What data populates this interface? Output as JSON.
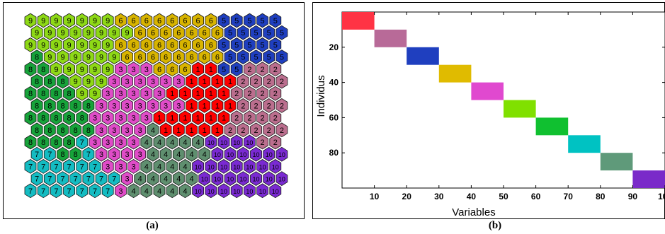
{
  "panels": {
    "a": {
      "caption": "(a)",
      "grid_rows": [
        [
          9,
          9,
          9,
          9,
          9,
          9,
          9,
          6,
          6,
          6,
          6,
          6,
          6,
          6,
          6,
          5,
          5,
          5,
          5,
          5
        ],
        [
          9,
          9,
          9,
          9,
          9,
          9,
          9,
          9,
          6,
          6,
          6,
          6,
          6,
          6,
          6,
          5,
          5,
          5,
          5,
          5
        ],
        [
          9,
          9,
          9,
          9,
          9,
          9,
          9,
          6,
          6,
          6,
          6,
          6,
          6,
          6,
          6,
          5,
          5,
          5,
          5,
          5
        ],
        [
          8,
          9,
          9,
          9,
          9,
          9,
          9,
          6,
          6,
          6,
          6,
          6,
          6,
          6,
          6,
          5,
          5,
          5,
          5,
          5
        ],
        [
          8,
          8,
          9,
          9,
          9,
          9,
          9,
          3,
          3,
          3,
          6,
          6,
          6,
          1,
          1,
          5,
          5,
          2,
          2,
          2
        ],
        [
          8,
          8,
          8,
          9,
          9,
          9,
          3,
          3,
          3,
          3,
          3,
          3,
          1,
          1,
          1,
          1,
          2,
          2,
          2,
          2
        ],
        [
          8,
          8,
          8,
          8,
          9,
          9,
          3,
          3,
          3,
          3,
          3,
          1,
          1,
          1,
          1,
          1,
          2,
          2,
          2,
          2
        ],
        [
          8,
          8,
          8,
          8,
          8,
          3,
          3,
          3,
          3,
          3,
          3,
          3,
          1,
          1,
          1,
          1,
          2,
          2,
          2,
          2
        ],
        [
          8,
          8,
          8,
          8,
          8,
          3,
          3,
          3,
          3,
          3,
          1,
          1,
          1,
          1,
          1,
          1,
          2,
          2,
          2,
          2
        ],
        [
          8,
          8,
          8,
          8,
          8,
          3,
          3,
          3,
          3,
          4,
          1,
          1,
          1,
          1,
          1,
          2,
          2,
          2,
          2,
          2
        ],
        [
          8,
          8,
          8,
          8,
          7,
          3,
          3,
          3,
          3,
          4,
          4,
          4,
          4,
          4,
          10,
          10,
          10,
          10,
          2,
          2
        ],
        [
          7,
          7,
          8,
          8,
          7,
          3,
          3,
          3,
          3,
          4,
          4,
          4,
          4,
          4,
          10,
          10,
          10,
          10,
          10,
          10
        ],
        [
          7,
          7,
          7,
          7,
          7,
          7,
          3,
          3,
          3,
          4,
          4,
          4,
          4,
          10,
          10,
          10,
          10,
          10,
          10,
          10
        ],
        [
          7,
          7,
          7,
          7,
          7,
          7,
          7,
          3,
          4,
          4,
          4,
          4,
          4,
          10,
          10,
          10,
          10,
          10,
          10,
          10
        ],
        [
          7,
          7,
          7,
          7,
          7,
          7,
          7,
          3,
          4,
          4,
          4,
          4,
          4,
          10,
          10,
          10,
          10,
          10,
          10,
          10
        ]
      ]
    },
    "b": {
      "caption": "(b)"
    }
  },
  "colors": {
    "cluster_1": "#ff0000",
    "cluster_2": "#bb6e8e",
    "cluster_3": "#e04cc8",
    "cluster_4": "#5f8f6f",
    "cluster_5": "#1f3fbf",
    "cluster_6": "#d8b400",
    "cluster_7": "#14bcc2",
    "cluster_8": "#17a33a",
    "cluster_9": "#8ed916",
    "cluster_10": "#7a2ad2",
    "matrix_blocks": [
      "#ff3344",
      "#b86a98",
      "#1f3fbf",
      "#e0bb00",
      "#e049cf",
      "#80e000",
      "#10c030",
      "#00c2c2",
      "#5f9a7a",
      "#7a2ac9"
    ]
  },
  "chart_data": [
    {
      "type": "heatmap",
      "description_units": "self-organizing map cluster labels, 20 columns x 15 rows",
      "values_ref": "panels.a.grid_rows"
    },
    {
      "type": "heatmap",
      "xlabel": "Variables",
      "ylabel": "Individus",
      "xlim": [
        0,
        100
      ],
      "ylim": [
        100,
        0
      ],
      "xticks": [
        10,
        20,
        30,
        40,
        50,
        60,
        70,
        80,
        90,
        100
      ],
      "yticks": [
        20,
        40,
        60,
        80
      ],
      "blocks": [
        {
          "x": [
            0,
            10
          ],
          "y": [
            0,
            10
          ]
        },
        {
          "x": [
            10,
            20
          ],
          "y": [
            10,
            20
          ]
        },
        {
          "x": [
            20,
            30
          ],
          "y": [
            20,
            30
          ]
        },
        {
          "x": [
            30,
            40
          ],
          "y": [
            30,
            40
          ]
        },
        {
          "x": [
            40,
            50
          ],
          "y": [
            40,
            50
          ]
        },
        {
          "x": [
            50,
            60
          ],
          "y": [
            50,
            60
          ]
        },
        {
          "x": [
            60,
            70
          ],
          "y": [
            60,
            70
          ]
        },
        {
          "x": [
            70,
            80
          ],
          "y": [
            70,
            80
          ]
        },
        {
          "x": [
            80,
            90
          ],
          "y": [
            80,
            90
          ]
        },
        {
          "x": [
            90,
            100
          ],
          "y": [
            90,
            100
          ]
        }
      ]
    }
  ]
}
